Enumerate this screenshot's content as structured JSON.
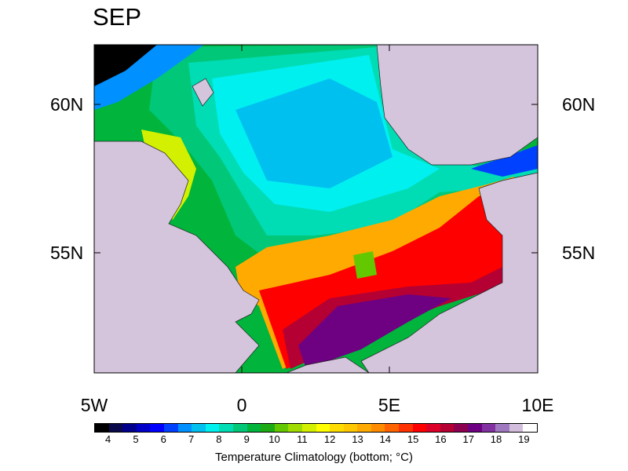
{
  "title": "SEP",
  "lat_labels": {
    "n60_left": "60N",
    "n55_left": "55N",
    "n60_right": "60N",
    "n55_right": "55N"
  },
  "lon_labels": [
    "5W",
    "0",
    "5E",
    "10E"
  ],
  "colorbar": {
    "label": "Temperature Climatology (bottom; °C)",
    "ticks": [
      "4",
      "5",
      "6",
      "7",
      "8",
      "9",
      "10",
      "11",
      "12",
      "13",
      "14",
      "15",
      "16",
      "17",
      "18",
      "19"
    ],
    "colors": [
      "#000000",
      "#0a0a4a",
      "#00008c",
      "#0000c8",
      "#0000ff",
      "#0040ff",
      "#0090ff",
      "#00c0f0",
      "#00f0f0",
      "#00dcb4",
      "#00c878",
      "#00b43c",
      "#1eaa14",
      "#64c800",
      "#a0dc00",
      "#d2f000",
      "#ffff00",
      "#ffdc00",
      "#ffc800",
      "#ffaa00",
      "#ff8c00",
      "#ff6400",
      "#ff3200",
      "#ff0000",
      "#dc0028",
      "#b40032",
      "#8c0050",
      "#6e0082",
      "#8232a0",
      "#a078c0",
      "#d2bedc",
      "#ffffff"
    ]
  },
  "land_color": "#d4c4dc"
}
